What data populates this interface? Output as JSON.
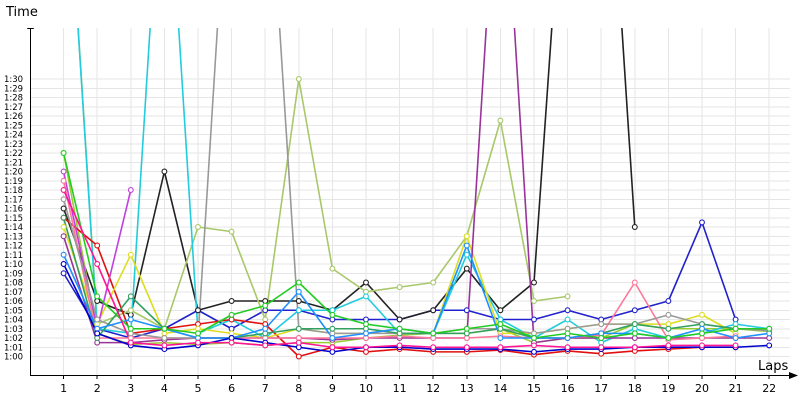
{
  "chart_data": {
    "type": "line",
    "ylabel": "Time",
    "xlabel": "Laps",
    "x_ticks": [
      "1",
      "2",
      "3",
      "4",
      "5",
      "6",
      "7",
      "8",
      "9",
      "10",
      "11",
      "12",
      "13",
      "14",
      "15",
      "16",
      "17",
      "18",
      "19",
      "20",
      "21",
      "22"
    ],
    "y_ticks": [
      "1:00",
      "1:01",
      "1:02",
      "1:03",
      "1:04",
      "1:05",
      "1:06",
      "1:07",
      "1:08",
      "1:09",
      "1:10",
      "1:11",
      "1:12",
      "1:13",
      "1:14",
      "1:15",
      "1:16",
      "1:17",
      "1:18",
      "1:19",
      "1:20",
      "1:21",
      "1:22",
      "1:23",
      "1:24",
      "1:25",
      "1:26",
      "1:27",
      "1:28",
      "1:29",
      "1:30"
    ],
    "ylim_seconds": [
      58,
      95
    ],
    "xlim": [
      0,
      22
    ],
    "grid": true,
    "series": [
      {
        "color": "#2222cc",
        "values": [
          69,
          63,
          62,
          63,
          65,
          63,
          65,
          65,
          64,
          64,
          64,
          65,
          65,
          64,
          64,
          65,
          64,
          65,
          66,
          74.5,
          64,
          null
        ]
      },
      {
        "color": "#222222",
        "values": [
          76,
          66,
          64.5,
          80,
          65,
          66,
          66,
          66,
          65,
          68,
          64,
          65,
          69.5,
          65,
          68,
          120,
          130,
          74,
          null,
          null,
          null,
          null
        ]
      },
      {
        "color": "#9acd32",
        "values": [
          82,
          62.5,
          61.3,
          61.5,
          61.3,
          61.5,
          61.2,
          61.5,
          61.5,
          62,
          62.3,
          62.5,
          62.5,
          63,
          61.5,
          62,
          62,
          63.5,
          63,
          63,
          63,
          62.7
        ]
      },
      {
        "color": "#a8c86a",
        "values": [
          120,
          63.5,
          65,
          63,
          74,
          73.5,
          64,
          90,
          69.5,
          67,
          67.5,
          68,
          73,
          85.5,
          66,
          66.5,
          null,
          null,
          null,
          null,
          null,
          null
        ]
      },
      {
        "color": "#22ccdd",
        "values": [
          120,
          63,
          62.5,
          120,
          62.5,
          64,
          62,
          65,
          65,
          66.5,
          62.5,
          62.5,
          71,
          64,
          62,
          64,
          61.5,
          63,
          62,
          62.5,
          63.5,
          63
        ]
      },
      {
        "color": "#e01010",
        "values": [
          75,
          72,
          62.5,
          63,
          63.5,
          64,
          63.5,
          60,
          61,
          60.5,
          60.8,
          60.5,
          60.5,
          60.7,
          60.2,
          60.6,
          60.3,
          60.6,
          60.8,
          61,
          61,
          null
        ]
      },
      {
        "color": "#dddd22",
        "values": [
          74,
          63.5,
          71,
          62.5,
          63,
          62.5,
          62,
          63,
          62.5,
          62.5,
          63,
          62.5,
          73,
          62.5,
          62.5,
          63,
          63.5,
          63.5,
          63.5,
          64.5,
          62.5,
          null
        ]
      },
      {
        "color": "#c040e0",
        "values": [
          80,
          63,
          78,
          null,
          null,
          null,
          null,
          null,
          null,
          null,
          null,
          null,
          null,
          null,
          null,
          null,
          null,
          null,
          null,
          null,
          null,
          null
        ]
      },
      {
        "color": "#993399",
        "values": [
          73,
          61.5,
          61.5,
          61.8,
          62,
          62,
          62,
          62,
          61.8,
          62,
          62,
          62,
          62,
          120,
          61.5,
          62,
          62,
          62,
          62,
          62,
          62,
          62
        ]
      },
      {
        "color": "#ff7799",
        "values": [
          79,
          62,
          62,
          62,
          62,
          62,
          62,
          62,
          62,
          62,
          62.2,
          62,
          62,
          62.2,
          62,
          62,
          62.3,
          68,
          61.8,
          62,
          62.2,
          null
        ]
      },
      {
        "color": "#999999",
        "values": [
          77,
          64,
          62.5,
          62,
          62,
          120,
          120,
          63,
          62.5,
          62.5,
          62.5,
          62.5,
          63,
          63,
          62.5,
          63,
          63.5,
          63.5,
          64.5,
          63.5,
          63,
          62.8
        ]
      },
      {
        "color": "#33a060",
        "values": [
          75,
          62,
          66.5,
          63,
          62,
          62,
          62.5,
          63,
          63,
          63,
          62.5,
          62.5,
          62.5,
          63,
          62,
          62,
          62.5,
          63.5,
          63,
          63.5,
          63,
          63
        ]
      },
      {
        "color": "#1e90ff",
        "values": [
          71,
          63,
          64,
          63,
          62,
          62,
          63,
          67,
          62,
          62.5,
          63,
          62.5,
          72,
          62,
          62,
          62,
          62.5,
          62.5,
          62,
          63,
          62,
          62.5
        ]
      },
      {
        "color": "#22cc22",
        "values": [
          82,
          66.5,
          63,
          63,
          62.5,
          64.5,
          65.5,
          68,
          64.5,
          63.5,
          63,
          62.5,
          63,
          63.5,
          62,
          62.5,
          62,
          62.5,
          62,
          62.5,
          63,
          63
        ]
      },
      {
        "color": "#0000cc",
        "values": [
          70,
          62.5,
          61.2,
          60.8,
          61.2,
          62,
          61.5,
          61,
          60.5,
          61,
          61,
          60.8,
          60.8,
          60.8,
          60.5,
          60.8,
          60.8,
          61,
          61,
          61,
          61,
          61.2
        ]
      },
      {
        "color": "#ff1493",
        "values": [
          78,
          70,
          61.5,
          61.2,
          61.5,
          61.5,
          61.2,
          61.5,
          61,
          61,
          61.2,
          61,
          61,
          61,
          61.2,
          61,
          61,
          61,
          61.2,
          61.2,
          61.2,
          null
        ]
      }
    ]
  }
}
